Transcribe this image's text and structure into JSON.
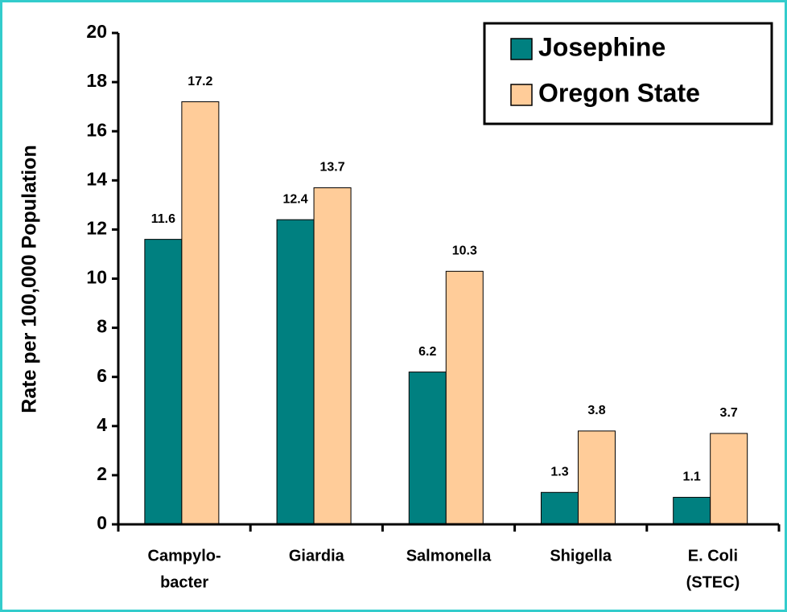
{
  "chart_data": {
    "type": "bar",
    "categories": [
      [
        "Campylo-",
        "bacter"
      ],
      [
        "Giardia"
      ],
      [
        "Salmonella"
      ],
      [
        "Shigella"
      ],
      [
        "E. Coli",
        "(STEC)"
      ]
    ],
    "series": [
      {
        "name": "Josephine",
        "color": "#008080",
        "values": [
          11.6,
          12.4,
          6.2,
          1.3,
          1.1
        ]
      },
      {
        "name": "Oregon State",
        "color": "#ffcc99",
        "values": [
          17.2,
          13.7,
          10.3,
          3.8,
          3.7
        ]
      }
    ],
    "ylabel": "Rate per 100,000 Population",
    "ylim": [
      0,
      20
    ],
    "yticks": [
      0,
      2,
      4,
      6,
      8,
      10,
      12,
      14,
      16,
      18,
      20
    ],
    "legend": "upper right"
  }
}
